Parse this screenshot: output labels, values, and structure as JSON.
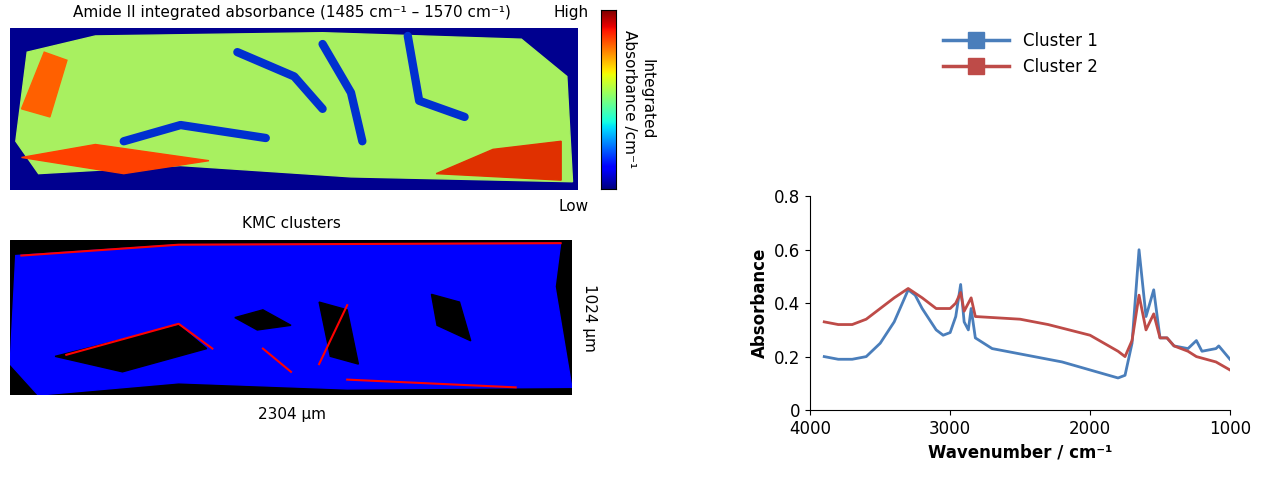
{
  "chart_data": [
    {
      "type": "image",
      "title": "Amide II integrated absorbance (1485 cm⁻¹ – 1570 cm⁻¹)",
      "colorbar_label": "Integrated\nAbsorbance /cm⁻¹",
      "colorbar_top": "High",
      "colorbar_bottom": "Low"
    },
    {
      "type": "image",
      "title": "KMC clusters",
      "xlabel": "2304 µm",
      "ylabel": "1024 µm",
      "colors": [
        "#0000ff",
        "#ff0000"
      ]
    },
    {
      "type": "line",
      "xlabel": "Wavenumber / cm⁻¹",
      "ylabel": "Absorbance",
      "xlim": [
        4000,
        1000
      ],
      "xticks": [
        4000,
        3000,
        2000,
        1000
      ],
      "ylim": [
        0,
        0.8
      ],
      "yticks": [
        0,
        0.2,
        0.4,
        0.6,
        0.8
      ],
      "legend": "upper center",
      "series": [
        {
          "name": "Cluster 1",
          "color": "#4a7ebb",
          "x": [
            3900,
            3800,
            3700,
            3600,
            3500,
            3400,
            3300,
            3250,
            3200,
            3100,
            3050,
            3000,
            2960,
            2925,
            2900,
            2870,
            2850,
            2820,
            2700,
            2500,
            2200,
            2000,
            1800,
            1750,
            1700,
            1650,
            1600,
            1545,
            1500,
            1450,
            1400,
            1300,
            1240,
            1200,
            1100,
            1080,
            1000
          ],
          "values": [
            0.2,
            0.19,
            0.19,
            0.2,
            0.25,
            0.33,
            0.45,
            0.43,
            0.38,
            0.3,
            0.28,
            0.29,
            0.35,
            0.47,
            0.33,
            0.3,
            0.38,
            0.27,
            0.23,
            0.21,
            0.18,
            0.15,
            0.12,
            0.13,
            0.25,
            0.6,
            0.35,
            0.45,
            0.27,
            0.27,
            0.24,
            0.23,
            0.26,
            0.22,
            0.23,
            0.24,
            0.19
          ]
        },
        {
          "name": "Cluster 2",
          "color": "#be4b48",
          "x": [
            3900,
            3800,
            3700,
            3600,
            3500,
            3400,
            3300,
            3200,
            3100,
            3000,
            2960,
            2925,
            2900,
            2850,
            2820,
            2500,
            2300,
            2000,
            1800,
            1750,
            1700,
            1650,
            1600,
            1545,
            1500,
            1450,
            1400,
            1300,
            1240,
            1100,
            1000
          ],
          "values": [
            0.33,
            0.32,
            0.32,
            0.34,
            0.38,
            0.42,
            0.455,
            0.42,
            0.38,
            0.38,
            0.4,
            0.44,
            0.37,
            0.42,
            0.35,
            0.34,
            0.32,
            0.28,
            0.22,
            0.2,
            0.26,
            0.43,
            0.3,
            0.36,
            0.27,
            0.27,
            0.24,
            0.22,
            0.2,
            0.18,
            0.15
          ]
        }
      ]
    }
  ]
}
